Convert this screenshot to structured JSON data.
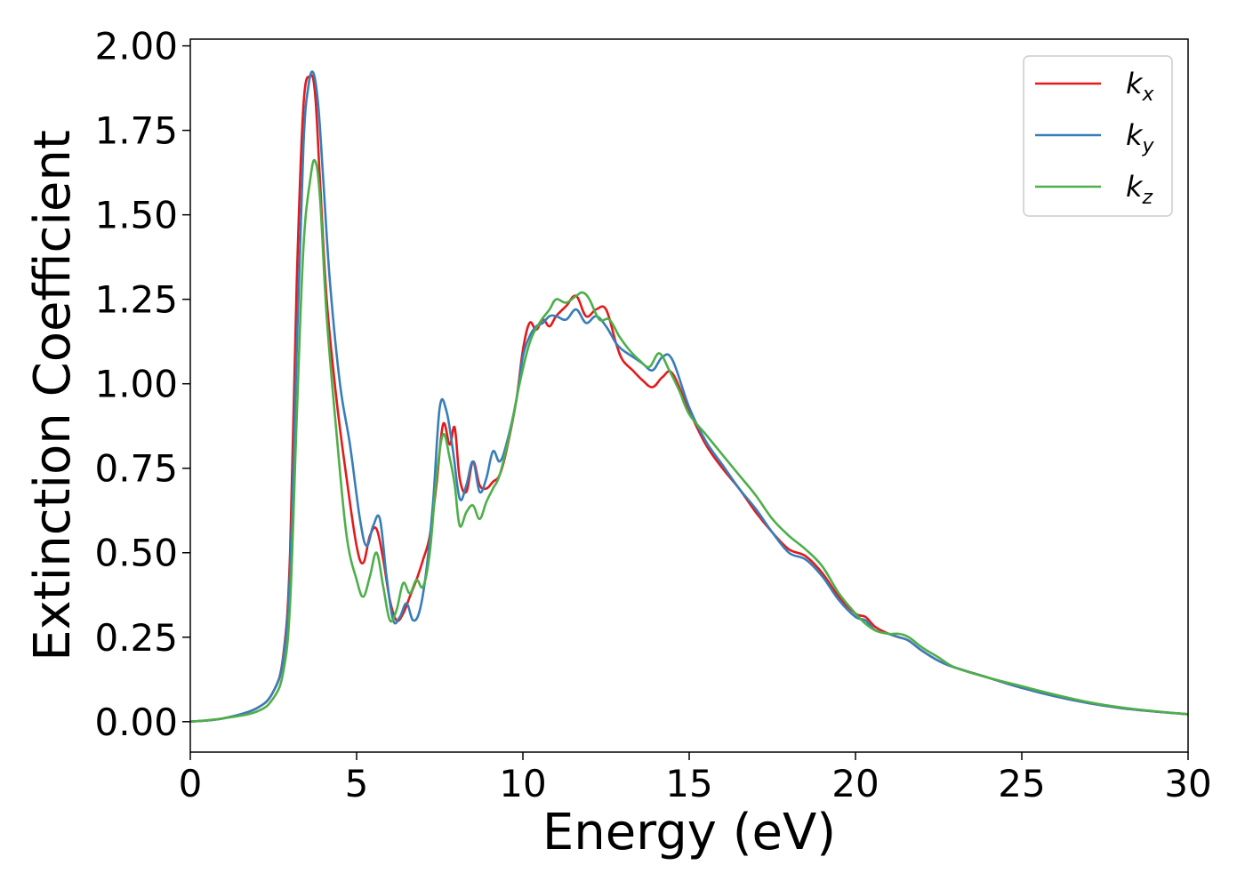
{
  "chart_data": {
    "type": "line",
    "title": "",
    "xlabel": "Energy (eV)",
    "ylabel": "Extinction Coefficient",
    "xlim": [
      0,
      30
    ],
    "ylim": [
      -0.09,
      2.02
    ],
    "xticks": [
      0,
      5,
      10,
      15,
      20,
      25,
      30
    ],
    "xtick_labels": [
      "0",
      "5",
      "10",
      "15",
      "20",
      "25",
      "30"
    ],
    "yticks": [
      0,
      0.25,
      0.5,
      0.75,
      1.0,
      1.25,
      1.5,
      1.75,
      2.0
    ],
    "ytick_labels": [
      "0.00",
      "0.25",
      "0.50",
      "0.75",
      "1.00",
      "1.25",
      "1.50",
      "1.75",
      "2.00"
    ],
    "grid": false,
    "legend_position": "top-right",
    "series": [
      {
        "name": "k_x",
        "label_main": "k",
        "label_sub": "x",
        "color": "#e41a1c",
        "x": [
          0,
          1,
          2,
          2.5,
          2.8,
          3.0,
          3.2,
          3.4,
          3.6,
          3.75,
          3.9,
          4.1,
          4.4,
          4.7,
          5.0,
          5.2,
          5.4,
          5.6,
          5.8,
          6.0,
          6.2,
          6.4,
          6.6,
          6.8,
          7.0,
          7.2,
          7.4,
          7.6,
          7.8,
          7.95,
          8.1,
          8.3,
          8.5,
          8.7,
          8.9,
          9.1,
          9.3,
          9.5,
          9.8,
          10.0,
          10.2,
          10.4,
          10.6,
          10.8,
          11.0,
          11.3,
          11.6,
          11.9,
          12.2,
          12.5,
          12.8,
          13.0,
          13.3,
          13.6,
          13.9,
          14.2,
          14.5,
          15.0,
          15.5,
          16.0,
          16.5,
          17.0,
          17.5,
          18.0,
          18.5,
          19.0,
          19.5,
          20.0,
          20.3,
          20.6,
          21.0,
          21.3,
          21.6,
          22.0,
          22.5,
          23.0,
          24.0,
          25.0,
          26.0,
          27.0,
          28.0,
          29.0,
          30.0
        ],
        "y": [
          0.0,
          0.01,
          0.04,
          0.09,
          0.2,
          0.5,
          1.3,
          1.82,
          1.91,
          1.86,
          1.6,
          1.25,
          0.95,
          0.72,
          0.52,
          0.47,
          0.55,
          0.57,
          0.48,
          0.36,
          0.3,
          0.32,
          0.37,
          0.42,
          0.48,
          0.55,
          0.7,
          0.88,
          0.82,
          0.87,
          0.72,
          0.68,
          0.77,
          0.7,
          0.69,
          0.71,
          0.73,
          0.8,
          0.95,
          1.1,
          1.18,
          1.16,
          1.19,
          1.17,
          1.2,
          1.23,
          1.26,
          1.2,
          1.22,
          1.22,
          1.12,
          1.07,
          1.04,
          1.01,
          0.99,
          1.02,
          1.03,
          0.92,
          0.82,
          0.75,
          0.69,
          0.62,
          0.56,
          0.51,
          0.49,
          0.44,
          0.37,
          0.32,
          0.31,
          0.28,
          0.26,
          0.25,
          0.24,
          0.21,
          0.18,
          0.16,
          0.13,
          0.1,
          0.075,
          0.055,
          0.04,
          0.03,
          0.022
        ]
      },
      {
        "name": "k_y",
        "label_main": "k",
        "label_sub": "y",
        "color": "#377eb8",
        "x": [
          0,
          1,
          2,
          2.5,
          2.8,
          3.0,
          3.2,
          3.4,
          3.55,
          3.7,
          3.85,
          4.0,
          4.2,
          4.5,
          4.8,
          5.1,
          5.3,
          5.5,
          5.7,
          5.9,
          6.1,
          6.3,
          6.5,
          6.7,
          6.9,
          7.1,
          7.3,
          7.5,
          7.7,
          7.9,
          8.1,
          8.3,
          8.5,
          8.7,
          8.9,
          9.1,
          9.3,
          9.5,
          9.8,
          10.0,
          10.2,
          10.4,
          10.6,
          10.8,
          11.0,
          11.3,
          11.6,
          11.9,
          12.2,
          12.5,
          12.8,
          13.0,
          13.3,
          13.6,
          13.9,
          14.2,
          14.5,
          15.0,
          15.5,
          16.0,
          16.5,
          17.0,
          17.5,
          18.0,
          18.5,
          19.0,
          19.5,
          20.0,
          20.3,
          20.6,
          21.0,
          21.3,
          21.6,
          22.0,
          22.5,
          23.0,
          24.0,
          25.0,
          26.0,
          27.0,
          28.0,
          29.0,
          30.0
        ],
        "y": [
          0.0,
          0.01,
          0.04,
          0.09,
          0.19,
          0.45,
          1.1,
          1.7,
          1.88,
          1.92,
          1.82,
          1.6,
          1.3,
          1.0,
          0.82,
          0.6,
          0.52,
          0.58,
          0.6,
          0.43,
          0.3,
          0.31,
          0.35,
          0.3,
          0.33,
          0.45,
          0.65,
          0.93,
          0.92,
          0.8,
          0.66,
          0.7,
          0.77,
          0.68,
          0.72,
          0.8,
          0.77,
          0.82,
          0.95,
          1.08,
          1.14,
          1.17,
          1.18,
          1.2,
          1.2,
          1.19,
          1.22,
          1.18,
          1.2,
          1.17,
          1.12,
          1.1,
          1.08,
          1.06,
          1.04,
          1.08,
          1.07,
          0.93,
          0.83,
          0.76,
          0.69,
          0.63,
          0.56,
          0.5,
          0.48,
          0.43,
          0.36,
          0.31,
          0.3,
          0.27,
          0.26,
          0.25,
          0.24,
          0.21,
          0.18,
          0.16,
          0.13,
          0.1,
          0.075,
          0.055,
          0.04,
          0.03,
          0.022
        ]
      },
      {
        "name": "k_z",
        "label_main": "k",
        "label_sub": "z",
        "color": "#4daf4a",
        "x": [
          0,
          1,
          2,
          2.5,
          2.8,
          3.0,
          3.2,
          3.4,
          3.6,
          3.75,
          3.9,
          4.1,
          4.4,
          4.7,
          5.0,
          5.2,
          5.4,
          5.6,
          5.8,
          6.0,
          6.2,
          6.4,
          6.6,
          6.8,
          7.0,
          7.2,
          7.4,
          7.6,
          7.8,
          7.95,
          8.1,
          8.3,
          8.5,
          8.7,
          8.9,
          9.1,
          9.3,
          9.6,
          9.9,
          10.2,
          10.5,
          10.8,
          11.0,
          11.3,
          11.6,
          11.8,
          12.0,
          12.3,
          12.6,
          12.9,
          13.2,
          13.5,
          13.8,
          14.1,
          14.4,
          14.7,
          15.0,
          15.5,
          16.0,
          16.5,
          17.0,
          17.5,
          18.0,
          18.5,
          19.0,
          19.5,
          20.0,
          20.3,
          20.6,
          21.0,
          21.3,
          21.6,
          22.0,
          22.5,
          23.0,
          24.0,
          25.0,
          26.0,
          27.0,
          28.0,
          29.0,
          30.0
        ],
        "y": [
          0.0,
          0.01,
          0.03,
          0.07,
          0.15,
          0.35,
          0.9,
          1.4,
          1.6,
          1.66,
          1.55,
          1.2,
          0.85,
          0.55,
          0.42,
          0.37,
          0.43,
          0.5,
          0.4,
          0.3,
          0.33,
          0.41,
          0.38,
          0.42,
          0.4,
          0.5,
          0.72,
          0.85,
          0.78,
          0.7,
          0.58,
          0.62,
          0.64,
          0.6,
          0.65,
          0.69,
          0.73,
          0.85,
          1.0,
          1.12,
          1.18,
          1.22,
          1.25,
          1.24,
          1.26,
          1.27,
          1.25,
          1.19,
          1.19,
          1.14,
          1.1,
          1.07,
          1.05,
          1.09,
          1.04,
          0.98,
          0.91,
          0.85,
          0.79,
          0.73,
          0.67,
          0.6,
          0.55,
          0.51,
          0.46,
          0.38,
          0.32,
          0.29,
          0.27,
          0.26,
          0.26,
          0.25,
          0.22,
          0.19,
          0.16,
          0.13,
          0.105,
          0.08,
          0.058,
          0.042,
          0.031,
          0.022
        ]
      }
    ]
  }
}
